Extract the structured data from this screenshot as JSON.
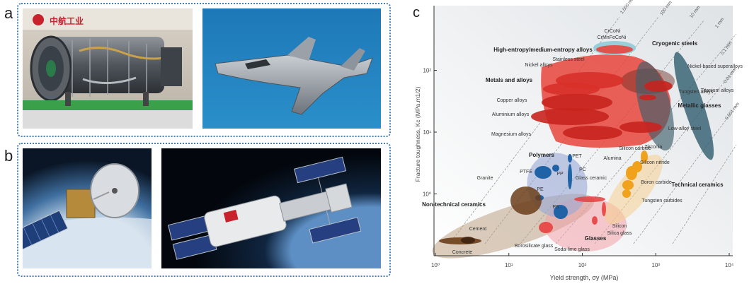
{
  "panels": {
    "a": "a",
    "b": "b",
    "c": "c"
  },
  "photos": {
    "engine": {
      "icon": "jet-engine-photo",
      "banner": "中航工业"
    },
    "fighter": {
      "icon": "stealth-fighter-photo"
    },
    "satellite": {
      "icon": "satellite-photo"
    },
    "station": {
      "icon": "space-station-photo"
    }
  },
  "chart_data": {
    "type": "scatter",
    "xlabel": "Yield strength, σy (MPa)",
    "ylabel": "Fracture toughness, Kc (MPa.m1/2)",
    "x_scale": "log",
    "y_scale": "log",
    "xlim": [
      1,
      10000
    ],
    "ylim": [
      0.1,
      1000
    ],
    "x_ticks": [
      "10⁰",
      "10¹",
      "10²",
      "10³",
      "10⁴"
    ],
    "y_ticks": [
      "10⁰",
      "10¹",
      "10²"
    ],
    "guide_lines": [
      "1,000 mm",
      "100 mm",
      "10 mm",
      "1 mm",
      "0.1 mm",
      "0.01 mm",
      "0.001 mm"
    ],
    "groups": [
      "High-entropy/medium-entropy alloys",
      "Cryogenic steels",
      "Metals and alloys",
      "Metallic glasses",
      "Polymers",
      "Technical ceramics",
      "Non-technical ceramics",
      "Glasses"
    ],
    "materials": [
      "CrCoNi",
      "CrMnFeCoNi",
      "Stainless steel",
      "Nickel alloys",
      "Nickel-based superalloys",
      "Titanium alloys",
      "Tungsten alloys",
      "Copper alloys",
      "Aluminium alloys",
      "Low-alloy steel",
      "Magnesium alloys",
      "Silicon carbide",
      "Zirconia",
      "Alumina",
      "Silicon nitride",
      "Boron carbide",
      "Tungsten carbides",
      "PET",
      "PC",
      "PP",
      "PTFE",
      "PE",
      "PS",
      "Granite",
      "Glass ceramic",
      "Cement",
      "Concrete",
      "Borosilicate glass",
      "Soda-lime glass",
      "Silicon",
      "Silica glass"
    ]
  }
}
